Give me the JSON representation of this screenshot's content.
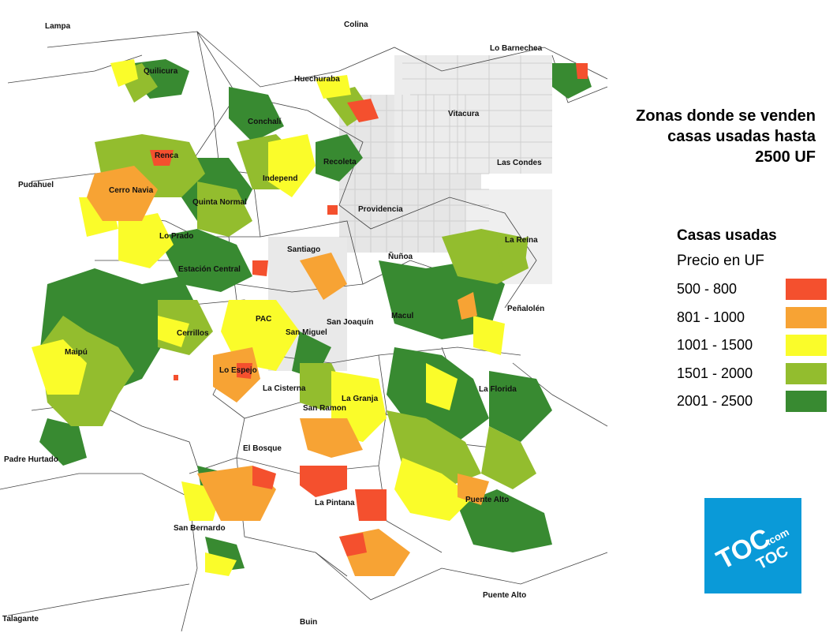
{
  "title_lines": [
    "Zonas donde se venden",
    "casas usadas hasta",
    "2500 UF"
  ],
  "legend": {
    "title": "Casas usadas",
    "subtitle": "Precio en UF",
    "items": [
      {
        "label": "500 - 800",
        "color": "#f4502e"
      },
      {
        "label": "801 - 1000",
        "color": "#f7a334"
      },
      {
        "label": "1001 - 1500",
        "color": "#fafc2a"
      },
      {
        "label": "1501 - 2000",
        "color": "#93bd2e"
      },
      {
        "label": "2001 - 2500",
        "color": "#388a31"
      }
    ]
  },
  "places": [
    {
      "name": "Lampa",
      "key": "lampa"
    },
    {
      "name": "Colina",
      "key": "colina"
    },
    {
      "name": "Lo Barnechea",
      "key": "lobarnechea"
    },
    {
      "name": "Quilicura",
      "key": "quilicura"
    },
    {
      "name": "Huechuraba",
      "key": "huechuraba"
    },
    {
      "name": "Vitacura",
      "key": "vitacura"
    },
    {
      "name": "Conchalí",
      "key": "conchali"
    },
    {
      "name": "Renca",
      "key": "renca"
    },
    {
      "name": "Recoleta",
      "key": "recoleta"
    },
    {
      "name": "Las Condes",
      "key": "lascondes"
    },
    {
      "name": "Independ",
      "key": "independ"
    },
    {
      "name": "Pudahuel",
      "key": "pudahuel"
    },
    {
      "name": "Cerro Navia",
      "key": "cerronavia"
    },
    {
      "name": "Quinta Normal",
      "key": "quintanormal"
    },
    {
      "name": "Providencia",
      "key": "providencia"
    },
    {
      "name": "Lo Prado",
      "key": "loprado"
    },
    {
      "name": "La Reina",
      "key": "lareina"
    },
    {
      "name": "Santiago",
      "key": "santiago"
    },
    {
      "name": "Ñuñoa",
      "key": "nunoa"
    },
    {
      "name": "Estación Central",
      "key": "estacioncentral"
    },
    {
      "name": "Peñalolén",
      "key": "penalolen"
    },
    {
      "name": "Macul",
      "key": "macul"
    },
    {
      "name": "PAC",
      "key": "pac"
    },
    {
      "name": "San Joaquín",
      "key": "sanjoaquin"
    },
    {
      "name": "Cerrillos",
      "key": "cerrillos"
    },
    {
      "name": "San Miguel",
      "key": "sanmiguel"
    },
    {
      "name": "Maipú",
      "key": "maipu"
    },
    {
      "name": "Lo Espejo",
      "key": "loespejo"
    },
    {
      "name": "La Florida",
      "key": "laflorida"
    },
    {
      "name": "La Cisterna",
      "key": "lacisterna"
    },
    {
      "name": "La Granja",
      "key": "lagranja"
    },
    {
      "name": "San Ramon",
      "key": "sanramon"
    },
    {
      "name": "El Bosque",
      "key": "elbosque"
    },
    {
      "name": "Padre Hurtado",
      "key": "padrehurtado"
    },
    {
      "name": "Puente Alto",
      "key": "puentealto1"
    },
    {
      "name": "La Pintana",
      "key": "lapintana"
    },
    {
      "name": "San Bernardo",
      "key": "sanbernardo"
    },
    {
      "name": "Puente Alto",
      "key": "puentealto2"
    },
    {
      "name": "Talagante",
      "key": "talagante"
    },
    {
      "name": "Buin",
      "key": "buin"
    }
  ],
  "logo": {
    "line1": "TOC",
    "line2": "TOC",
    "dotcom": ".com"
  }
}
